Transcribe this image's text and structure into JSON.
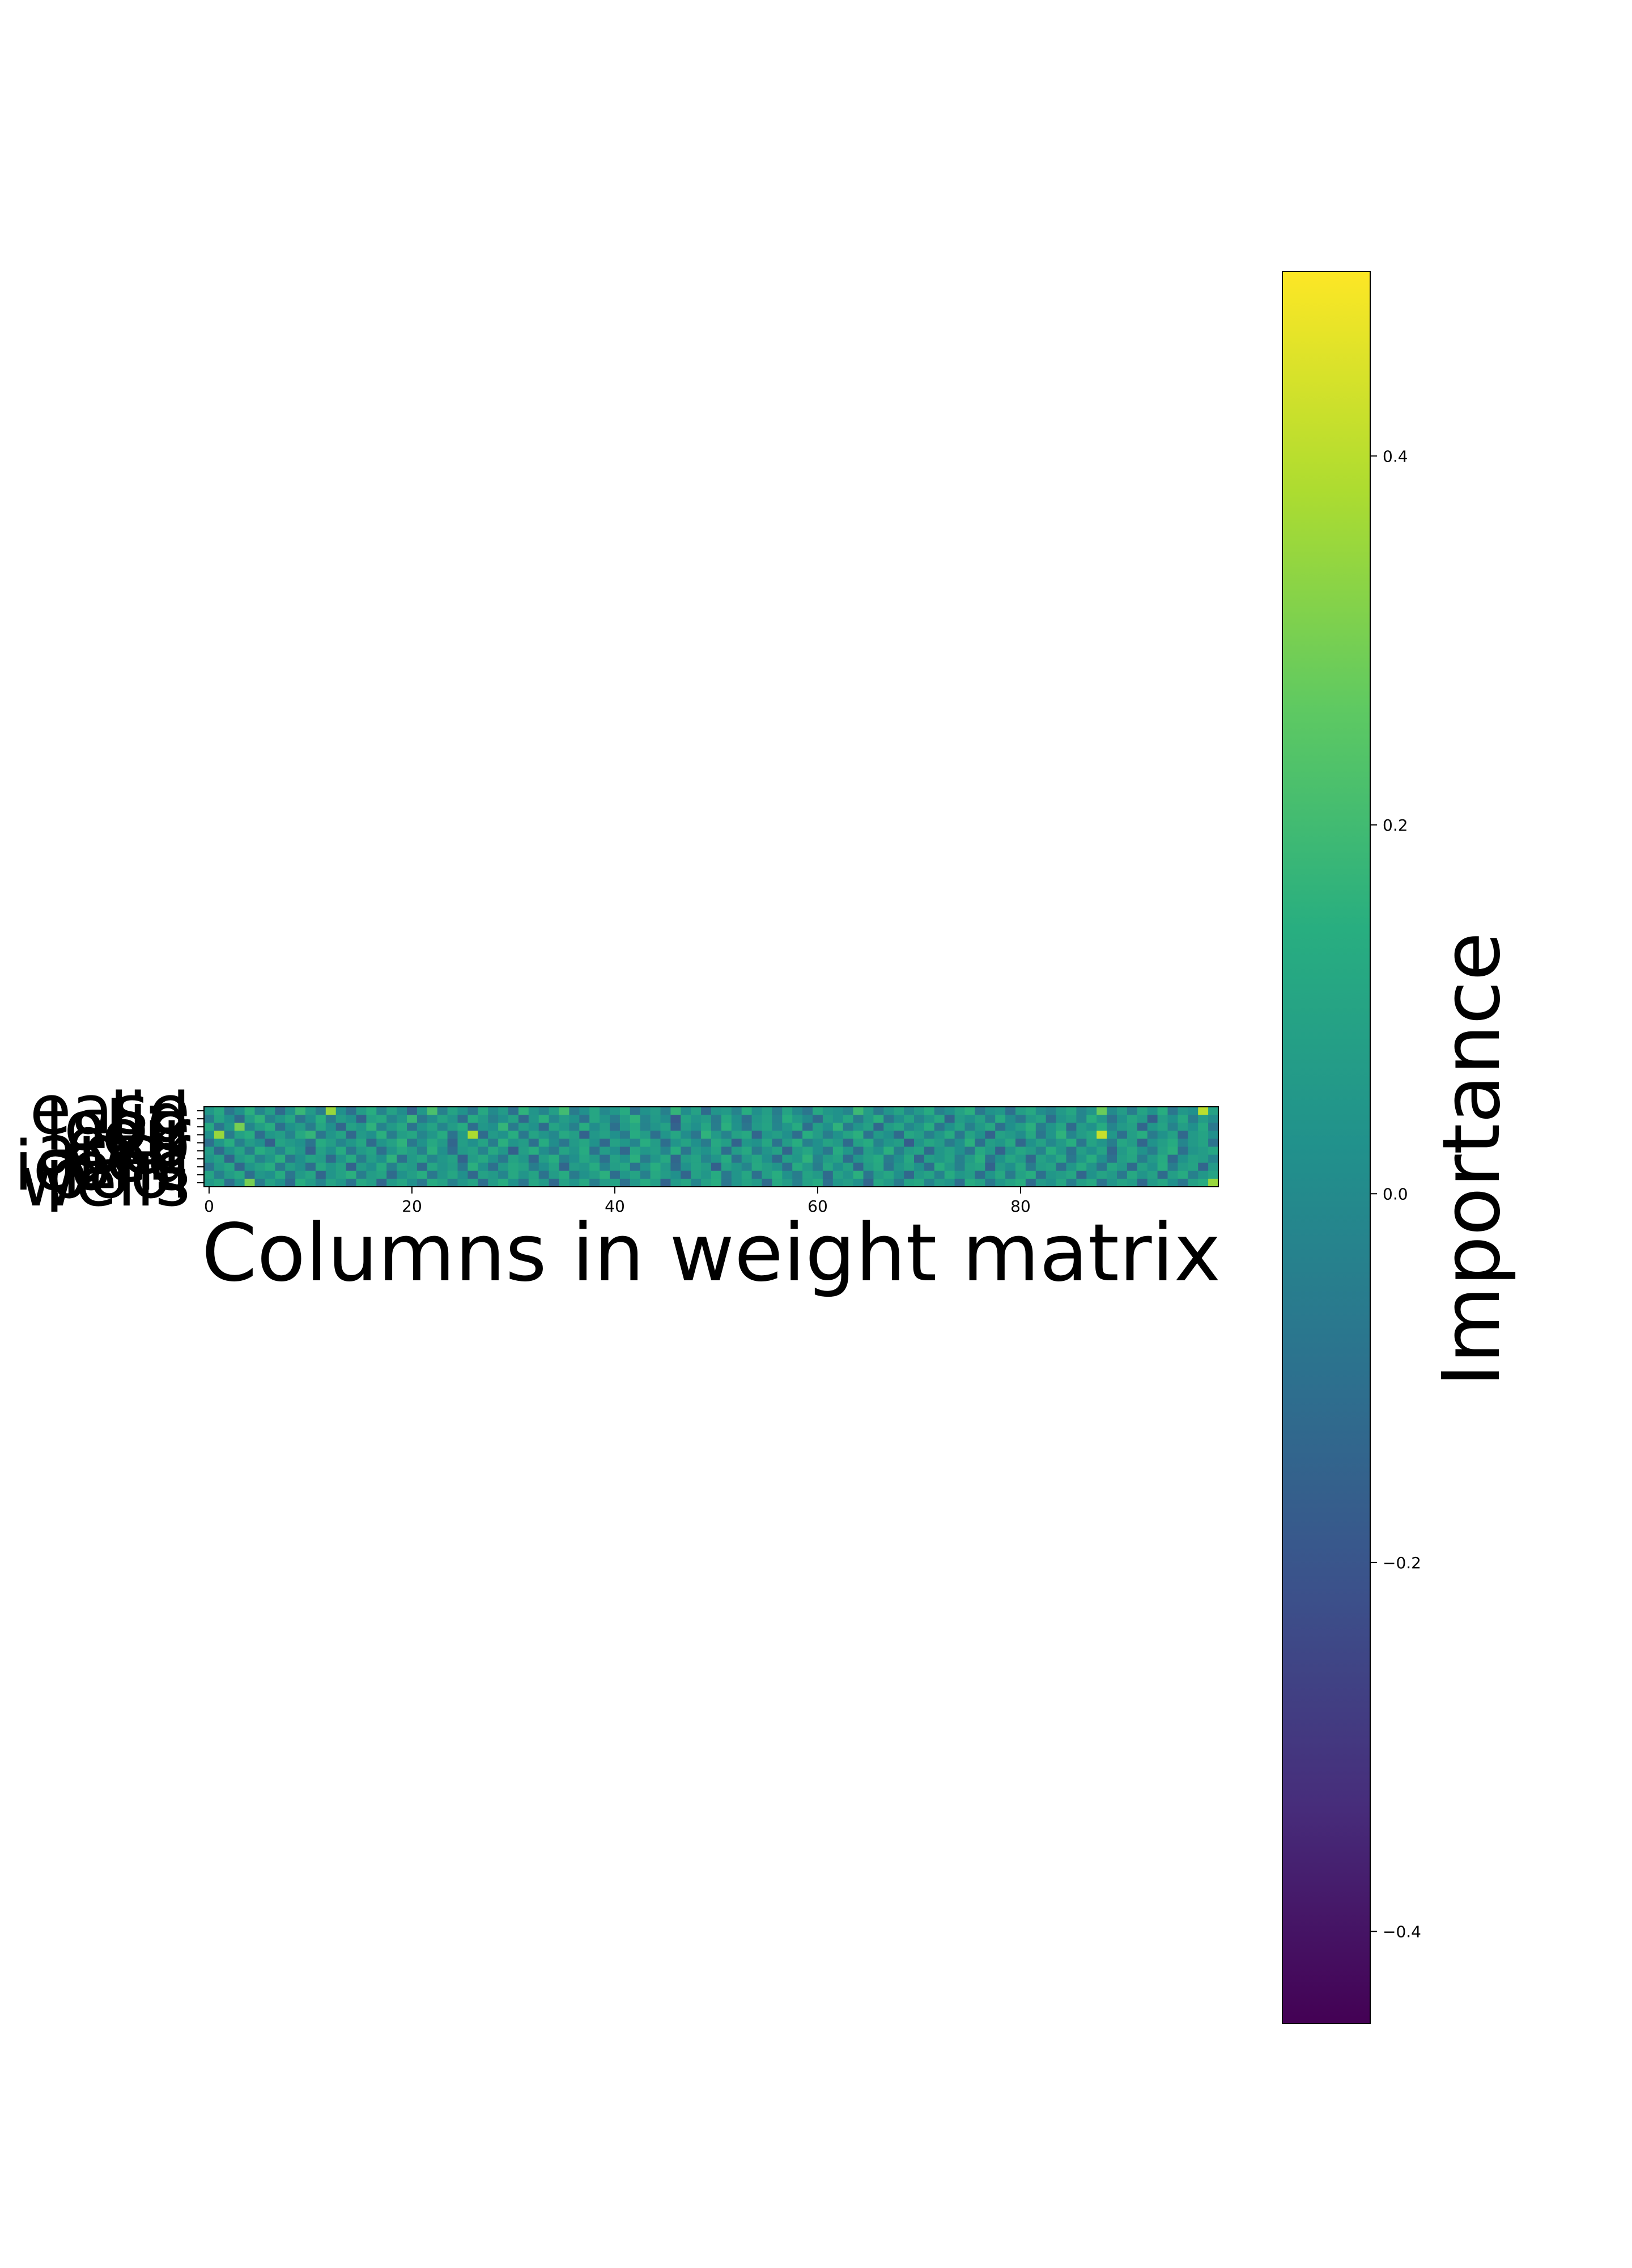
{
  "chart_data": {
    "type": "heatmap",
    "xlabel": "Columns in weight matrix",
    "ylabel": "",
    "x_ticks": [
      "0",
      "20",
      "40",
      "60",
      "80"
    ],
    "x_tick_values": [
      0,
      20,
      40,
      60,
      80
    ],
    "n_columns": 100,
    "row_labels": [
      "ease",
      "lid",
      "lobe",
      "eir",
      "exp",
      "aper",
      "ped",
      "icons",
      "pool",
      "wells"
    ],
    "colormap": "viridis",
    "colorbar": {
      "label": "Importance",
      "ticks": [
        "−0.4",
        "−0.2",
        "0.0",
        "0.2",
        "0.4"
      ],
      "tick_values": [
        -0.4,
        -0.2,
        0.0,
        0.2,
        0.4
      ],
      "vmin": -0.45,
      "vmax": 0.5
    },
    "rows": [
      [
        0.05,
        0.12,
        -0.08,
        0.02,
        0.15,
        -0.02,
        0.08,
        -0.12,
        0.03,
        0.18,
        0.06,
        -0.05,
        0.35,
        0.02,
        -0.1,
        0.07,
        0.14,
        -0.03,
        0.09,
        0.01,
        -0.15,
        0.05,
        0.22,
        -0.04,
        0.1,
        0.03,
        -0.07,
        0.12,
        0.0,
        0.06,
        -0.1,
        0.16,
        0.04,
        -0.02,
        0.08,
        0.2,
        -0.06,
        0.02,
        0.11,
        -0.01,
        0.05,
        0.13,
        -0.09,
        0.03,
        0.07,
        -0.04,
        0.17,
        0.01,
        0.09,
        -0.12,
        0.04,
        0.06,
        -0.03,
        0.14,
        0.02,
        0.08,
        -0.05,
        0.1,
        0.0,
        -0.08,
        0.12,
        0.05,
        0.03,
        -0.02,
        0.19,
        0.07,
        -0.06,
        0.04,
        0.1,
        -0.01,
        0.06,
        0.13,
        -0.04,
        0.02,
        0.09,
        0.15,
        -0.07,
        0.03,
        0.05,
        -0.1,
        0.08,
        0.12,
        0.01,
        -0.03,
        0.06,
        0.11,
        -0.02,
        0.04,
        0.28,
        0.0,
        0.07,
        -0.05,
        0.1,
        0.03,
        0.14,
        -0.08,
        0.05,
        0.02,
        0.4,
        0.09
      ],
      [
        -0.05,
        0.1,
        0.02,
        -0.12,
        0.08,
        0.16,
        -0.03,
        0.05,
        0.11,
        -0.08,
        0.02,
        0.14,
        -0.06,
        0.07,
        0.03,
        -0.15,
        0.09,
        0.12,
        -0.02,
        0.05,
        0.18,
        -0.07,
        0.01,
        0.1,
        0.04,
        -0.11,
        0.13,
        0.06,
        -0.04,
        0.02,
        0.09,
        -0.13,
        0.05,
        0.15,
        -0.01,
        0.07,
        0.03,
        -0.09,
        0.11,
        0.04,
        -0.05,
        0.08,
        0.16,
        -0.02,
        0.06,
        0.01,
        -0.18,
        0.1,
        0.04,
        0.07,
        -0.06,
        0.12,
        0.02,
        -0.1,
        0.05,
        0.09,
        -0.03,
        0.14,
        0.06,
        0.0,
        -0.12,
        0.08,
        0.03,
        0.11,
        -0.05,
        0.06,
        0.15,
        -0.08,
        0.02,
        0.1,
        -0.02,
        0.05,
        0.12,
        -0.14,
        0.07,
        0.03,
        0.09,
        -0.04,
        0.13,
        0.01,
        -0.07,
        0.06,
        0.1,
        -0.11,
        0.04,
        0.08,
        -0.02,
        0.14,
        0.05,
        -0.09,
        0.03,
        0.11,
        0.06,
        -0.16,
        0.08,
        0.02,
        0.12,
        -0.05,
        0.07,
        0.01
      ],
      [
        0.12,
        -0.08,
        0.05,
        0.3,
        -0.02,
        0.08,
        0.14,
        -0.1,
        0.03,
        0.07,
        -0.05,
        0.11,
        0.02,
        -0.14,
        0.09,
        0.05,
        0.16,
        -0.03,
        0.06,
        0.12,
        -0.09,
        0.04,
        0.1,
        -0.02,
        0.07,
        0.13,
        -0.11,
        0.05,
        0.02,
        0.17,
        -0.06,
        0.08,
        0.03,
        -0.12,
        0.1,
        0.05,
        -0.04,
        0.14,
        0.01,
        0.08,
        -0.1,
        0.06,
        0.12,
        -0.03,
        0.04,
        0.09,
        -0.15,
        0.07,
        0.02,
        0.11,
        -0.05,
        0.15,
        0.03,
        -0.08,
        0.06,
        0.1,
        -0.02,
        0.05,
        0.13,
        -0.11,
        0.08,
        0.02,
        0.16,
        -0.06,
        0.04,
        0.09,
        -0.13,
        0.07,
        0.11,
        -0.01,
        0.05,
        0.14,
        -0.08,
        0.03,
        0.1,
        -0.04,
        0.06,
        0.12,
        -0.1,
        0.02,
        0.08,
        0.15,
        -0.05,
        0.04,
        0.11,
        -0.12,
        0.07,
        0.03,
        0.13,
        -0.02,
        0.06,
        0.09,
        -0.14,
        0.05,
        0.1,
        -0.03,
        0.08,
        0.02,
        0.12,
        -0.07
      ],
      [
        0.02,
        0.35,
        -0.06,
        0.09,
        0.14,
        -0.11,
        0.05,
        0.08,
        -0.03,
        0.12,
        0.17,
        -0.08,
        0.04,
        0.1,
        -0.13,
        0.06,
        0.02,
        0.15,
        -0.05,
        0.08,
        0.11,
        -0.02,
        0.05,
        0.13,
        -0.09,
        0.07,
        0.38,
        -0.12,
        0.06,
        0.03,
        0.14,
        -0.07,
        0.1,
        0.04,
        -0.01,
        0.12,
        0.08,
        -0.15,
        0.05,
        0.09,
        0.02,
        -0.06,
        0.13,
        0.07,
        -0.1,
        0.04,
        0.11,
        0.01,
        -0.08,
        0.16,
        0.06,
        -0.03,
        0.09,
        0.12,
        -0.14,
        0.05,
        0.08,
        0.02,
        -0.11,
        0.14,
        0.07,
        -0.05,
        0.03,
        0.1,
        0.15,
        -0.09,
        0.06,
        0.02,
        -0.12,
        0.11,
        0.08,
        -0.04,
        0.05,
        0.13,
        -0.07,
        0.1,
        0.03,
        -0.15,
        0.09,
        0.06,
        0.01,
        0.12,
        -0.08,
        0.04,
        0.16,
        -0.02,
        0.07,
        0.11,
        0.42,
        0.05,
        -0.1,
        0.08,
        0.14,
        -0.06,
        0.03,
        0.09,
        -0.13,
        0.06,
        0.1,
        0.02
      ],
      [
        -0.1,
        0.05,
        0.14,
        -0.04,
        0.07,
        0.02,
        -0.16,
        0.1,
        0.06,
        0.03,
        -0.09,
        0.13,
        0.08,
        -0.02,
        0.05,
        0.11,
        -0.12,
        0.04,
        0.09,
        0.16,
        -0.07,
        0.03,
        0.12,
        0.06,
        -0.14,
        0.08,
        0.02,
        0.1,
        -0.05,
        0.15,
        0.04,
        0.07,
        -0.1,
        0.13,
        0.01,
        -0.08,
        0.06,
        0.11,
        0.03,
        -0.13,
        0.09,
        0.05,
        -0.02,
        0.14,
        0.07,
        -0.11,
        0.04,
        0.1,
        0.02,
        -0.06,
        0.12,
        0.08,
        -0.15,
        0.05,
        0.03,
        0.11,
        -0.09,
        0.07,
        0.14,
        -0.04,
        0.02,
        0.1,
        0.06,
        -0.12,
        0.09,
        0.13,
        -0.03,
        0.05,
        0.08,
        -0.17,
        0.04,
        0.11,
        0.07,
        -0.06,
        0.02,
        0.15,
        -0.1,
        0.08,
        0.05,
        0.12,
        -0.13,
        0.03,
        0.09,
        -0.01,
        0.06,
        0.14,
        -0.08,
        0.1,
        0.04,
        -0.05,
        0.11,
        0.07,
        -0.14,
        0.03,
        0.08,
        0.13,
        -0.02,
        0.06,
        0.1,
        -0.09
      ],
      [
        0.07,
        -0.12,
        0.03,
        0.1,
        -0.05,
        0.14,
        0.08,
        -0.02,
        0.11,
        0.05,
        -0.15,
        0.09,
        0.02,
        0.13,
        -0.07,
        0.06,
        0.1,
        -0.1,
        0.04,
        0.12,
        0.07,
        -0.04,
        0.15,
        0.02,
        -0.11,
        0.06,
        0.09,
        -0.03,
        0.12,
        0.05,
        -0.16,
        0.08,
        0.14,
        0.01,
        -0.06,
        0.1,
        0.04,
        0.13,
        -0.09,
        0.07,
        0.02,
        -0.13,
        0.11,
        0.05,
        0.08,
        -0.02,
        0.14,
        -0.08,
        0.06,
        0.03,
        0.1,
        -0.11,
        0.07,
        0.12,
        -0.05,
        0.04,
        0.09,
        -0.14,
        0.06,
        0.11,
        0.02,
        -0.07,
        0.13,
        0.05,
        -0.1,
        0.08,
        0.03,
        0.15,
        -0.04,
        0.07,
        0.1,
        -0.12,
        0.05,
        0.09,
        0.02,
        -0.08,
        0.12,
        0.06,
        -0.15,
        0.04,
        0.11,
        0.07,
        -0.03,
        0.14,
        0.05,
        -0.09,
        0.08,
        0.02,
        0.1,
        -0.13,
        0.06,
        0.12,
        0.03,
        -0.05,
        0.09,
        0.15,
        -0.1,
        0.04,
        0.07,
        0.11
      ],
      [
        0.04,
        0.09,
        -0.14,
        0.06,
        0.11,
        -0.03,
        0.05,
        0.15,
        -0.08,
        0.02,
        0.1,
        0.07,
        -0.12,
        0.04,
        0.13,
        -0.05,
        0.08,
        0.02,
        0.16,
        -0.1,
        0.06,
        0.11,
        -0.02,
        0.05,
        0.09,
        -0.15,
        0.07,
        0.12,
        0.03,
        -0.07,
        0.1,
        0.05,
        -0.13,
        0.08,
        0.14,
        -0.04,
        0.02,
        0.11,
        0.06,
        -0.1,
        0.09,
        0.03,
        0.15,
        -0.06,
        0.05,
        0.12,
        -0.14,
        0.07,
        0.1,
        -0.02,
        0.04,
        0.13,
        -0.09,
        0.06,
        0.11,
        0.02,
        -0.12,
        0.08,
        0.05,
        0.16,
        -0.03,
        0.07,
        0.1,
        -0.11,
        0.04,
        0.09,
        0.13,
        -0.06,
        0.02,
        0.12,
        -0.14,
        0.08,
        0.05,
        0.1,
        -0.04,
        0.07,
        0.15,
        -0.09,
        0.03,
        0.11,
        0.06,
        -0.13,
        0.09,
        0.04,
        0.12,
        -0.07,
        0.05,
        0.14,
        0.02,
        -0.1,
        0.08,
        0.11,
        -0.05,
        0.06,
        0.13,
        -0.12,
        0.03,
        0.09,
        0.07,
        -0.02
      ],
      [
        -0.08,
        0.06,
        0.11,
        -0.13,
        0.04,
        0.09,
        0.14,
        -0.06,
        0.08,
        0.03,
        -0.11,
        0.12,
        0.05,
        0.1,
        -0.15,
        0.07,
        0.02,
        0.13,
        -0.04,
        0.09,
        0.06,
        -0.12,
        0.11,
        0.04,
        0.08,
        -0.07,
        0.15,
        0.03,
        -0.1,
        0.06,
        0.12,
        0.09,
        -0.05,
        0.02,
        0.1,
        -0.14,
        0.07,
        0.05,
        0.13,
        -0.03,
        0.08,
        0.11,
        -0.09,
        0.04,
        0.14,
        0.06,
        -0.12,
        0.03,
        0.1,
        0.07,
        -0.16,
        0.09,
        0.05,
        -0.02,
        0.12,
        0.08,
        0.04,
        -0.1,
        0.13,
        0.06,
        -0.05,
        0.11,
        0.02,
        0.09,
        -0.13,
        0.07,
        0.12,
        -0.08,
        0.05,
        0.1,
        0.03,
        -0.11,
        0.14,
        0.06,
        -0.04,
        0.09,
        0.11,
        -0.15,
        0.07,
        0.02,
        0.12,
        -0.06,
        0.08,
        0.1,
        -0.1,
        0.05,
        0.13,
        0.04,
        -0.08,
        0.11,
        0.06,
        -0.12,
        0.09,
        0.03,
        0.14,
        -0.05,
        0.07,
        0.1,
        -0.14,
        0.06
      ],
      [
        0.1,
        -0.04,
        0.07,
        0.12,
        -0.1,
        0.05,
        0.02,
        0.13,
        -0.08,
        0.06,
        0.11,
        -0.14,
        0.04,
        0.09,
        0.15,
        -0.05,
        0.07,
        0.1,
        -0.12,
        0.03,
        0.08,
        0.14,
        -0.07,
        0.05,
        0.11,
        0.02,
        -0.13,
        0.09,
        0.06,
        -0.02,
        0.12,
        0.04,
        0.1,
        -0.09,
        0.07,
        0.13,
        -0.06,
        0.03,
        0.08,
        0.15,
        -0.11,
        0.05,
        0.1,
        -0.04,
        0.12,
        0.07,
        0.02,
        -0.14,
        0.09,
        0.05,
        0.13,
        -0.07,
        0.04,
        0.11,
        -0.1,
        0.08,
        0.14,
        0.03,
        -0.05,
        0.1,
        0.06,
        -0.12,
        0.09,
        0.04,
        0.15,
        -0.08,
        0.07,
        0.11,
        0.02,
        -0.13,
        0.06,
        0.1,
        -0.03,
        0.13,
        0.05,
        0.08,
        -0.11,
        0.04,
        0.12,
        -0.06,
        0.09,
        0.14,
        -0.1,
        0.05,
        0.07,
        0.11,
        -0.14,
        0.03,
        0.1,
        0.06,
        -0.07,
        0.12,
        0.04,
        0.09,
        -0.12,
        0.08,
        0.13,
        -0.04,
        0.05,
        0.1
      ],
      [
        0.06,
        0.11,
        -0.1,
        0.04,
        0.3,
        -0.06,
        0.09,
        0.03,
        -0.12,
        0.14,
        0.07,
        -0.03,
        0.1,
        0.05,
        -0.09,
        0.12,
        0.08,
        -0.14,
        0.06,
        0.11,
        0.02,
        -0.07,
        0.13,
        0.09,
        -0.04,
        0.05,
        0.1,
        -0.11,
        0.07,
        0.14,
        0.03,
        -0.08,
        0.11,
        0.06,
        -0.13,
        0.09,
        0.04,
        0.12,
        -0.05,
        0.07,
        0.1,
        -0.1,
        0.05,
        0.13,
        0.08,
        -0.15,
        0.06,
        0.11,
        -0.02,
        0.09,
        0.14,
        -0.08,
        0.04,
        0.1,
        0.06,
        -0.12,
        0.12,
        0.07,
        -0.04,
        0.09,
        0.13,
        -0.1,
        0.05,
        0.08,
        0.02,
        -0.14,
        0.11,
        0.06,
        -0.06,
        0.1,
        0.12,
        -0.03,
        0.07,
        0.04,
        -0.11,
        0.13,
        0.09,
        -0.07,
        0.05,
        0.1,
        0.14,
        -0.12,
        0.06,
        0.03,
        0.11,
        -0.05,
        0.08,
        0.12,
        -0.09,
        0.04,
        0.1,
        0.07,
        -0.13,
        0.06,
        0.11,
        0.02,
        -0.08,
        0.09,
        0.13,
        0.35
      ]
    ]
  }
}
